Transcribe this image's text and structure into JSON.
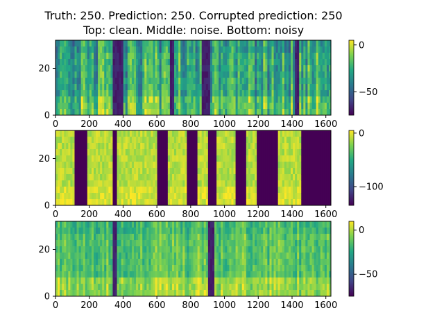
{
  "title_line1": "Truth: 250. Prediction: 250. Corrupted prediction: 250",
  "title_line2": "Top: clean. Middle: noise. Bottom: noisy",
  "colormap": [
    "#440154",
    "#414487",
    "#2a788e",
    "#22a884",
    "#7ad151",
    "#fde725"
  ],
  "chart_data": [
    {
      "type": "heatmap",
      "name": "clean",
      "xlim": [
        0,
        1630
      ],
      "ylim": [
        0,
        32
      ],
      "xticks": [
        "0",
        "200",
        "400",
        "600",
        "800",
        "1000",
        "1200",
        "1400",
        "1600"
      ],
      "yticks": [
        "0",
        "20"
      ],
      "colorbar": {
        "range": [
          -75,
          5
        ],
        "ticks": [
          "0",
          "−50"
        ]
      },
      "dark_bands": [
        [
          340,
          395
        ],
        [
          680,
          705
        ],
        [
          860,
          910
        ],
        [
          1420,
          1445
        ]
      ],
      "mean_level": 0.5
    },
    {
      "type": "heatmap",
      "name": "noise",
      "xlim": [
        0,
        1630
      ],
      "ylim": [
        0,
        32
      ],
      "xticks": [
        "0",
        "200",
        "400",
        "600",
        "800",
        "1000",
        "1200",
        "1400",
        "1600"
      ],
      "yticks": [
        "0",
        "20"
      ],
      "colorbar": {
        "range": [
          -135,
          5
        ],
        "ticks": [
          "0",
          "−100"
        ]
      },
      "on_segments": [
        [
          0,
          115
        ],
        [
          190,
          335
        ],
        [
          360,
          605
        ],
        [
          665,
          775
        ],
        [
          840,
          905
        ],
        [
          950,
          1065
        ],
        [
          1125,
          1195
        ],
        [
          1315,
          1455
        ]
      ],
      "mean_level": 0.9
    },
    {
      "type": "heatmap",
      "name": "noisy",
      "xlim": [
        0,
        1630
      ],
      "ylim": [
        0,
        32
      ],
      "xticks": [
        "0",
        "200",
        "400",
        "600",
        "800",
        "1000",
        "1200",
        "1400",
        "1600"
      ],
      "yticks": [
        "0",
        "20"
      ],
      "colorbar": {
        "range": [
          -75,
          10
        ],
        "ticks": [
          "0",
          "−50"
        ]
      },
      "dark_bands": [
        [
          335,
          360
        ],
        [
          900,
          945
        ]
      ],
      "mean_level": 0.7
    }
  ]
}
